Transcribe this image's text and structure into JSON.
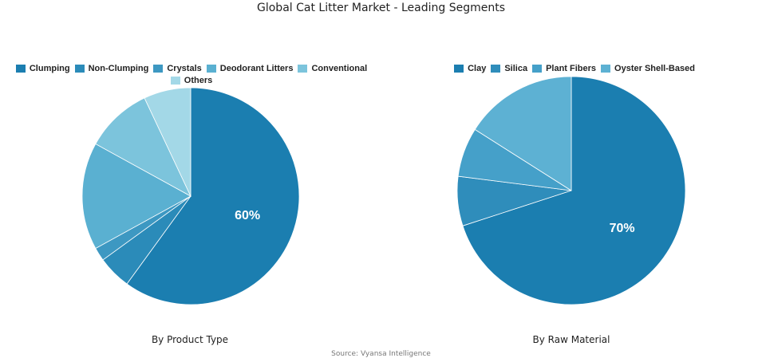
{
  "title": "Global Cat Litter Market - Leading Segments",
  "source": "Source: Vyansa Intelligence",
  "chart_data": [
    {
      "type": "pie",
      "caption": "By Product Type",
      "categories": [
        "Clumping",
        "Non-Clumping",
        "Crystals",
        "Deodorant Litters",
        "Conventional",
        "Others"
      ],
      "values": [
        60,
        5,
        2,
        16,
        10,
        7
      ],
      "data_labels": [
        "60%",
        "",
        "",
        "",
        "",
        ""
      ],
      "colors": [
        "#1b7eb0",
        "#2b8bb9",
        "#3d98c2",
        "#5ab0d1",
        "#7cc4dc",
        "#a3d8e7"
      ],
      "legend_placement": "top"
    },
    {
      "type": "pie",
      "caption": "By Raw Material",
      "categories": [
        "Clay",
        "Silica",
        "Plant Fibers",
        "Oyster Shell-Based"
      ],
      "values": [
        70,
        7,
        7,
        16
      ],
      "data_labels": [
        "70%",
        "",
        "",
        ""
      ],
      "colors": [
        "#1b7eb0",
        "#2f8dbb",
        "#45a0c9",
        "#5db1d3"
      ],
      "legend_placement": "top"
    }
  ]
}
